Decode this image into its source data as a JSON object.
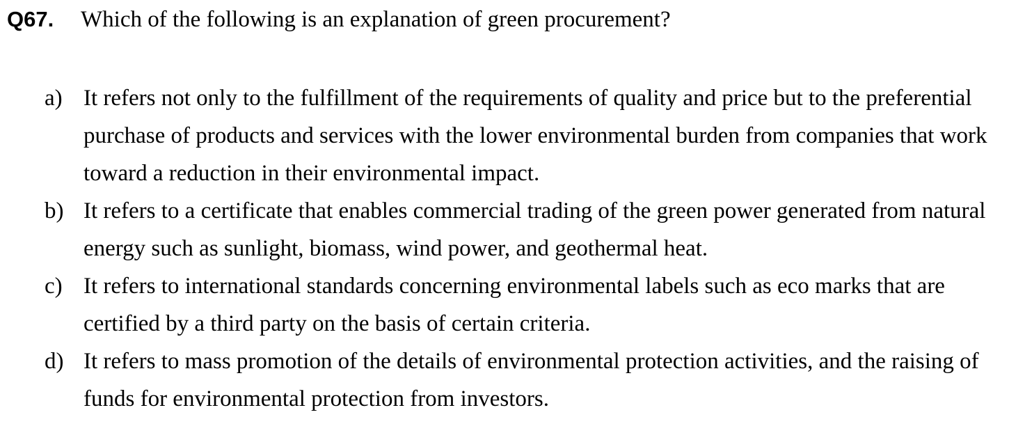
{
  "question": {
    "number": "Q67.",
    "text": "Which of the following is an explanation of green procurement?"
  },
  "options": [
    {
      "letter": "a)",
      "text": "It refers not only to the fulfillment of the requirements of quality and price but to the preferential purchase of products and services with the lower environmental burden from companies that work toward a reduction in their environmental impact."
    },
    {
      "letter": "b)",
      "text": "It refers to a certificate that enables commercial trading of the green power generated from natural energy such as sunlight, biomass, wind power, and geothermal heat."
    },
    {
      "letter": "c)",
      "text": "It refers to international standards concerning environmental labels such as eco marks that are certified by a third party on the basis of certain criteria."
    },
    {
      "letter": "d)",
      "text": "It refers to mass promotion of the details of environmental protection activities, and the raising of funds for environmental protection from investors."
    }
  ]
}
